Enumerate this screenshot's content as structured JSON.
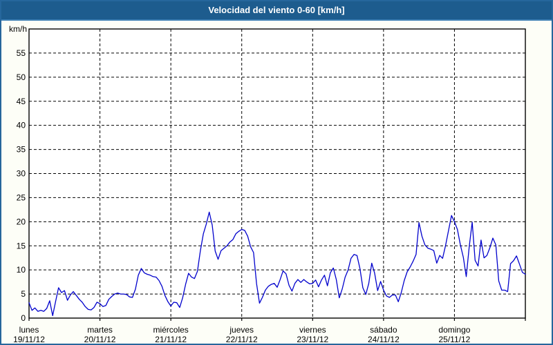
{
  "window": {
    "title": "Velocidad del viento 0-60 [km/h]"
  },
  "colors": {
    "titlebar_bg": "#1D5C8E",
    "titlebar_edge": "#3E7FB4",
    "titlebar_text": "#FFFFFF",
    "frame_border": "#26669C",
    "page_bg": "#FDFEF7",
    "plot_bg": "#FFFFFF",
    "plot_border": "#000000",
    "grid": "#000000",
    "axis_text": "#000000",
    "line": "#0000CC"
  },
  "chart_data": {
    "type": "line",
    "title": "Velocidad del viento 0-60 [km/h]",
    "ylabel": "km/h",
    "xlabel": "",
    "ylim": [
      0,
      60
    ],
    "yticks": [
      0,
      5,
      10,
      15,
      20,
      25,
      30,
      35,
      40,
      45,
      50,
      55
    ],
    "grid": true,
    "legend_position": "none",
    "series_name": "Velocidad del viento",
    "units": "km/h",
    "sample_interval_hours": 1,
    "days": [
      {
        "name": "lunes",
        "date": "19/11/12",
        "values": [
          3.2,
          1.6,
          2.1,
          1.4,
          1.6,
          1.4,
          2.0,
          3.6,
          0.5,
          3.5,
          6.3,
          5.3,
          5.7,
          3.7,
          4.8,
          5.5,
          4.7,
          3.9,
          3.3,
          2.4,
          1.8,
          1.7,
          2.2,
          3.3
        ]
      },
      {
        "name": "martes",
        "date": "20/11/12",
        "values": [
          3.0,
          2.4,
          2.6,
          3.9,
          4.5,
          5.0,
          5.2,
          5.0,
          5.0,
          4.9,
          4.4,
          4.3,
          6.0,
          8.9,
          10.3,
          9.4,
          9.1,
          8.9,
          8.6,
          8.5,
          7.8,
          6.6,
          4.7,
          3.4
        ]
      },
      {
        "name": "miércoles",
        "date": "21/11/12",
        "values": [
          2.5,
          3.3,
          3.2,
          2.2,
          4.2,
          7.0,
          9.3,
          8.5,
          8.2,
          9.7,
          14.0,
          17.5,
          19.5,
          22.0,
          19.3,
          13.9,
          12.2,
          14.0,
          14.5,
          15.0,
          15.8,
          16.3,
          17.5,
          18.0
        ]
      },
      {
        "name": "jueves",
        "date": "22/11/12",
        "values": [
          18.4,
          18.2,
          17.0,
          14.8,
          13.6,
          7.2,
          3.1,
          4.3,
          5.8,
          6.6,
          7.0,
          7.2,
          6.4,
          8.0,
          9.8,
          9.2,
          6.8,
          5.6,
          7.2,
          8.0,
          7.4,
          8.0,
          7.5,
          7.1
        ]
      },
      {
        "name": "viernes",
        "date": "23/11/12",
        "values": [
          7.2,
          7.9,
          6.5,
          7.9,
          8.9,
          6.7,
          9.4,
          10.4,
          8.0,
          4.2,
          6.0,
          8.5,
          10.0,
          12.4,
          13.2,
          13.0,
          10.3,
          6.3,
          4.9,
          7.2,
          11.4,
          9.3,
          5.7,
          7.6
        ]
      },
      {
        "name": "sábado",
        "date": "24/11/12",
        "values": [
          5.8,
          4.6,
          4.3,
          4.8,
          4.8,
          3.4,
          5.3,
          7.8,
          9.6,
          10.6,
          11.8,
          13.2,
          19.8,
          17.0,
          15.2,
          14.5,
          14.3,
          14.0,
          11.4,
          13.0,
          12.4,
          15.1,
          18.2,
          21.3
        ]
      },
      {
        "name": "domingo",
        "date": "25/11/12",
        "values": [
          20.0,
          18.4,
          15.2,
          12.6,
          8.6,
          14.8,
          19.9,
          12.0,
          10.8,
          16.2,
          12.5,
          13.0,
          14.6,
          16.6,
          15.2,
          7.7,
          5.8,
          5.8,
          5.5,
          11.3,
          11.9,
          12.9,
          11.2,
          9.5
        ]
      }
    ],
    "end_value": 9.1
  }
}
